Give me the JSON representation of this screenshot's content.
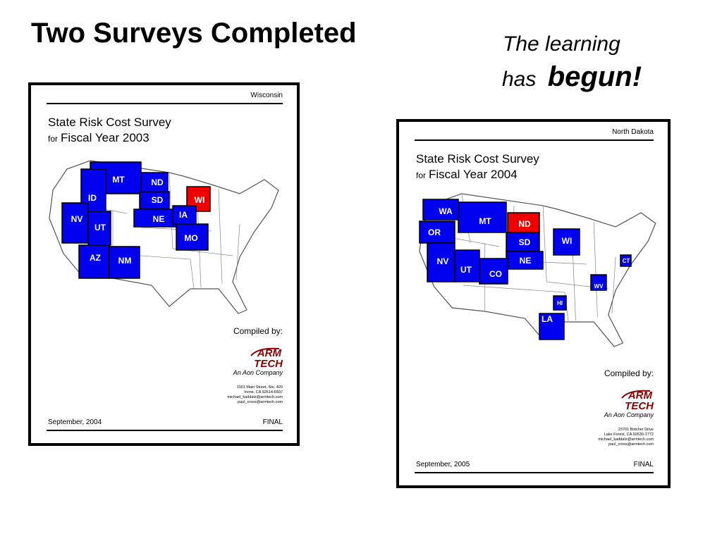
{
  "title": "Two Surveys Completed",
  "tagline": {
    "line1": "The learning",
    "line2_prefix": "has",
    "line2_emphasis": "begun!"
  },
  "covers": [
    {
      "state": "Wisconsin",
      "heading": "State Risk Cost Survey",
      "for": "for",
      "fiscal_year": "Fiscal Year 2003",
      "states": [
        {
          "label": "MT",
          "color": "#0000ee"
        },
        {
          "label": "ND",
          "color": "#0000ee"
        },
        {
          "label": "SD",
          "color": "#0000ee"
        },
        {
          "label": "NE",
          "color": "#0000ee"
        },
        {
          "label": "WI",
          "color": "#ee0000"
        },
        {
          "label": "IA",
          "color": "#0000ee"
        },
        {
          "label": "MO",
          "color": "#0000ee"
        },
        {
          "label": "ID",
          "color": "#0000ee"
        },
        {
          "label": "NV",
          "color": "#0000ee"
        },
        {
          "label": "UT",
          "color": "#0000ee"
        },
        {
          "label": "AZ",
          "color": "#0000ee"
        },
        {
          "label": "NM",
          "color": "#0000ee"
        }
      ],
      "compiled_by": "Compiled by:",
      "logo_top": "ARM",
      "logo_bottom": "TECH",
      "company": "An Aon Company",
      "address": [
        "1901 Main Street, Ste. 420",
        "Irvine, CA  92614-6507",
        "michael_kaddatz@armtech.com",
        "paul_cross@armtech.com"
      ],
      "date": "September, 2004",
      "status": "FINAL"
    },
    {
      "state": "North Dakota",
      "heading": "State Risk Cost Survey",
      "for": "for",
      "fiscal_year": "Fiscal Year 2004",
      "states": [
        {
          "label": "WA",
          "color": "#0000ee"
        },
        {
          "label": "OR",
          "color": "#0000ee"
        },
        {
          "label": "MT",
          "color": "#0000ee"
        },
        {
          "label": "ND",
          "color": "#ee0000"
        },
        {
          "label": "SD",
          "color": "#0000ee"
        },
        {
          "label": "NE",
          "color": "#0000ee"
        },
        {
          "label": "WI",
          "color": "#0000ee"
        },
        {
          "label": "NV",
          "color": "#0000ee"
        },
        {
          "label": "UT",
          "color": "#0000ee"
        },
        {
          "label": "CO",
          "color": "#0000ee"
        },
        {
          "label": "CT",
          "color": "#0000ee"
        },
        {
          "label": "WV",
          "color": "#0000ee"
        },
        {
          "label": "HI",
          "color": "#0000ee"
        },
        {
          "label": "LA",
          "color": "#0000ee"
        }
      ],
      "compiled_by": "Compiled by:",
      "logo_top": "ARM",
      "logo_bottom": "TECH",
      "company": "An Aon Company",
      "address": [
        "23701 Birtcher Drive",
        "Lake Forest, CA  92630-1772",
        "michael_kaddatz@armtech.com",
        "paul_cross@armtech.com"
      ],
      "date": "September, 2005",
      "status": "FINAL"
    }
  ]
}
